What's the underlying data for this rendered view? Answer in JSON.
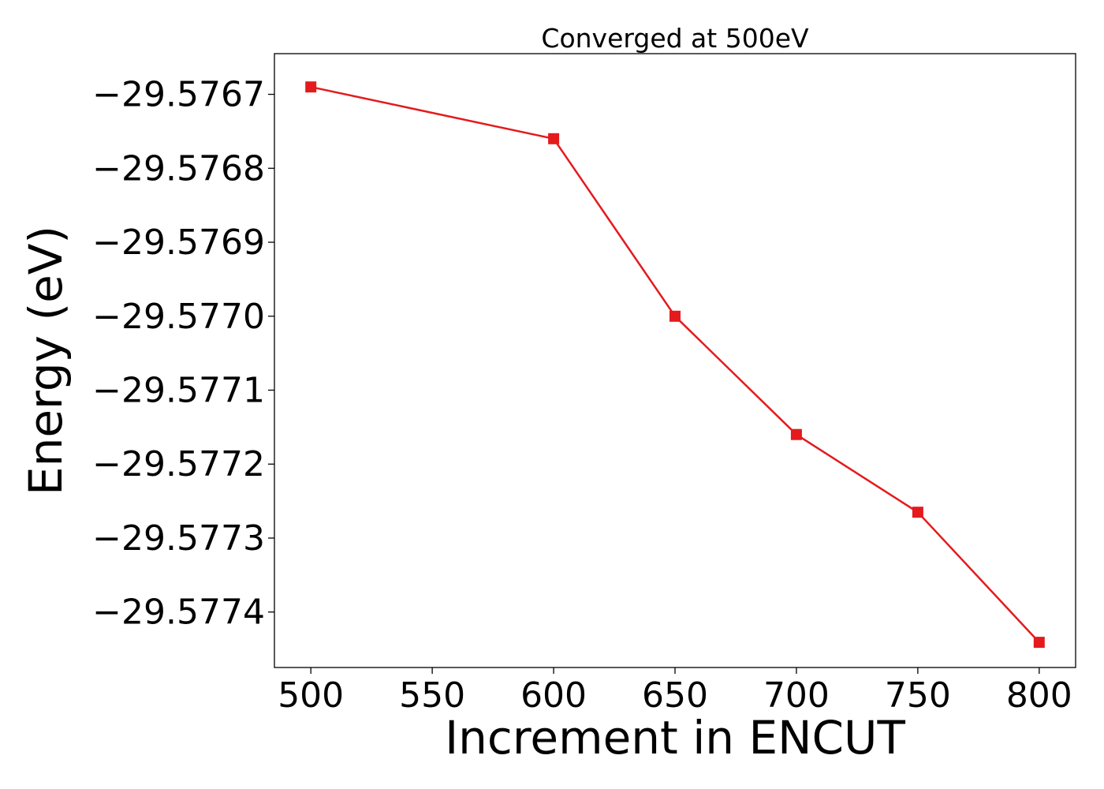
{
  "chart_data": {
    "type": "line",
    "title": "Converged at 500eV",
    "xlabel": "Increment in ENCUT",
    "ylabel": "Energy (eV)",
    "x": [
      500,
      600,
      650,
      700,
      750,
      800
    ],
    "series": [
      {
        "values": [
          -29.57669,
          -29.57676,
          -29.577,
          -29.57716,
          -29.577265,
          -29.577441
        ],
        "color": "#e41a1c",
        "marker": "square"
      }
    ],
    "xlim": [
      485,
      815
    ],
    "ylim": [
      -29.577475,
      -29.576645
    ],
    "xticks": [
      500,
      550,
      600,
      650,
      700,
      750,
      800
    ],
    "xtick_labels": [
      "500",
      "550",
      "600",
      "650",
      "700",
      "750",
      "800"
    ],
    "yticks": [
      -29.5767,
      -29.5768,
      -29.5769,
      -29.577,
      -29.5771,
      -29.5772,
      -29.5773,
      -29.5774
    ],
    "ytick_labels": [
      "−29.5767",
      "−29.5768",
      "−29.5769",
      "−29.5770",
      "−29.5771",
      "−29.5772",
      "−29.5773",
      "−29.5774"
    ],
    "grid": false,
    "legend": false
  }
}
